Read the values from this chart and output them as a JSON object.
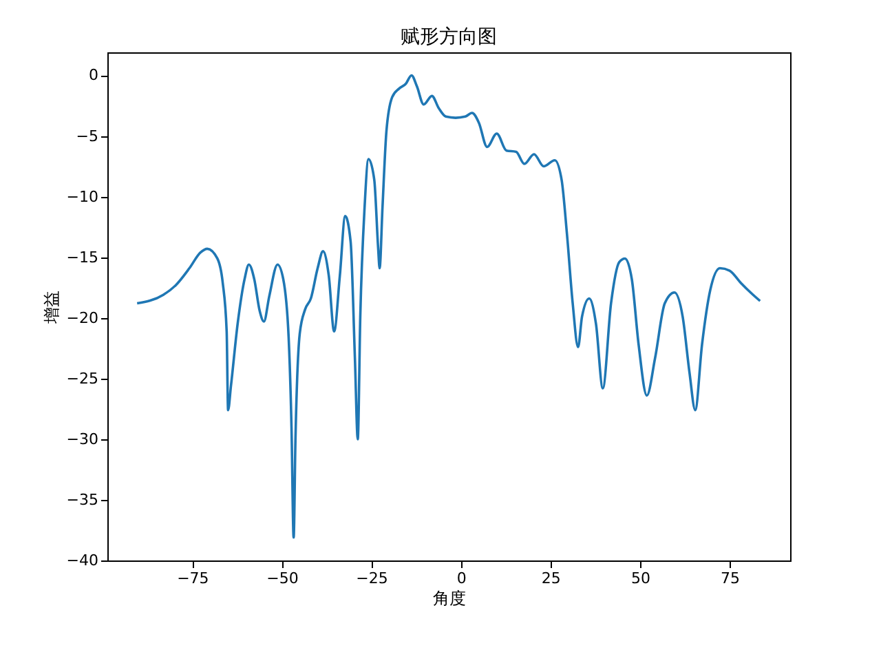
{
  "chart_data": {
    "type": "line",
    "title": "赋形方向图",
    "xlabel": "角度",
    "ylabel": "增益",
    "x": [
      -90.4,
      -83.1,
      -79.6,
      -75.8,
      -72.7,
      -70.8,
      -68,
      -66.5,
      -65.4,
      -65,
      -64.2,
      -62.3,
      -60.4,
      -59.2,
      -57.7,
      -56.2,
      -55,
      -53.5,
      -51.2,
      -49.6,
      -48.1,
      -47.3,
      -46.7,
      -46.2,
      -45,
      -43.5,
      -41.9,
      -40,
      -38.5,
      -36.9,
      -35.4,
      -33.8,
      -32.3,
      -30.8,
      -29.6,
      -28.8,
      -28.1,
      -26.9,
      -25.8,
      -24.2,
      -23.1,
      -22.7,
      -21.9,
      -20.8,
      -19.2,
      -17.3,
      -15.4,
      -13.8,
      -12.3,
      -10.4,
      -8.1,
      -6.2,
      -4.2,
      -1.5,
      1.2,
      3.1,
      5,
      7.3,
      10,
      12.7,
      15.4,
      17.7,
      20.4,
      23.1,
      26.2,
      28.1,
      29.6,
      31.2,
      32.7,
      33.8,
      35.8,
      37.7,
      39.6,
      41.9,
      44.2,
      45.8,
      47.7,
      49.6,
      51.9,
      54.2,
      56.9,
      59.6,
      61.9,
      63.8,
      65.4,
      67.3,
      69.6,
      72.3,
      75,
      78.1,
      81.2,
      83.5
    ],
    "series": [
      {
        "color": "#1f77b4",
        "values": [
          -18.8,
          -18.1,
          -17.3,
          -15.9,
          -14.6,
          -14.3,
          -15.1,
          -17.1,
          -21.1,
          -27.6,
          -25.6,
          -20.4,
          -16.8,
          -15.6,
          -16.8,
          -19.4,
          -20.3,
          -18.2,
          -15.6,
          -16.8,
          -21.6,
          -29,
          -38.1,
          -30.1,
          -21.3,
          -19.3,
          -18.4,
          -15.9,
          -14.5,
          -16.5,
          -21.1,
          -16.5,
          -11.6,
          -13.7,
          -23.3,
          -30,
          -19.9,
          -10.9,
          -6.9,
          -8.6,
          -14.3,
          -15.9,
          -10.9,
          -4.6,
          -1.8,
          -1.1,
          -0.7,
          0,
          -0.9,
          -2.4,
          -1.7,
          -2.7,
          -3.4,
          -3.5,
          -3.4,
          -3.1,
          -3.9,
          -5.9,
          -4.8,
          -6.2,
          -6.3,
          -7.3,
          -6.5,
          -7.5,
          -7,
          -8.6,
          -13.1,
          -18.8,
          -22.4,
          -19.9,
          -18.4,
          -20.5,
          -25.8,
          -18.8,
          -15.4,
          -15.1,
          -16.8,
          -22.2,
          -26.4,
          -23.3,
          -18.8,
          -17.9,
          -19.9,
          -24.5,
          -27.6,
          -22.2,
          -17.7,
          -15.9,
          -16.1,
          -17.1,
          -18,
          -18.6
        ]
      }
    ],
    "xlim": [
      -98.7,
      91.9
    ],
    "ylim": [
      -40,
      1.9
    ],
    "xticks": [
      -75,
      -50,
      -25,
      0,
      25,
      50,
      75
    ],
    "yticks": [
      0,
      -5,
      -10,
      -15,
      -20,
      -25,
      -30,
      -35,
      -40
    ],
    "grid": false,
    "legend": false,
    "marker": "none",
    "line_style": "solid"
  }
}
